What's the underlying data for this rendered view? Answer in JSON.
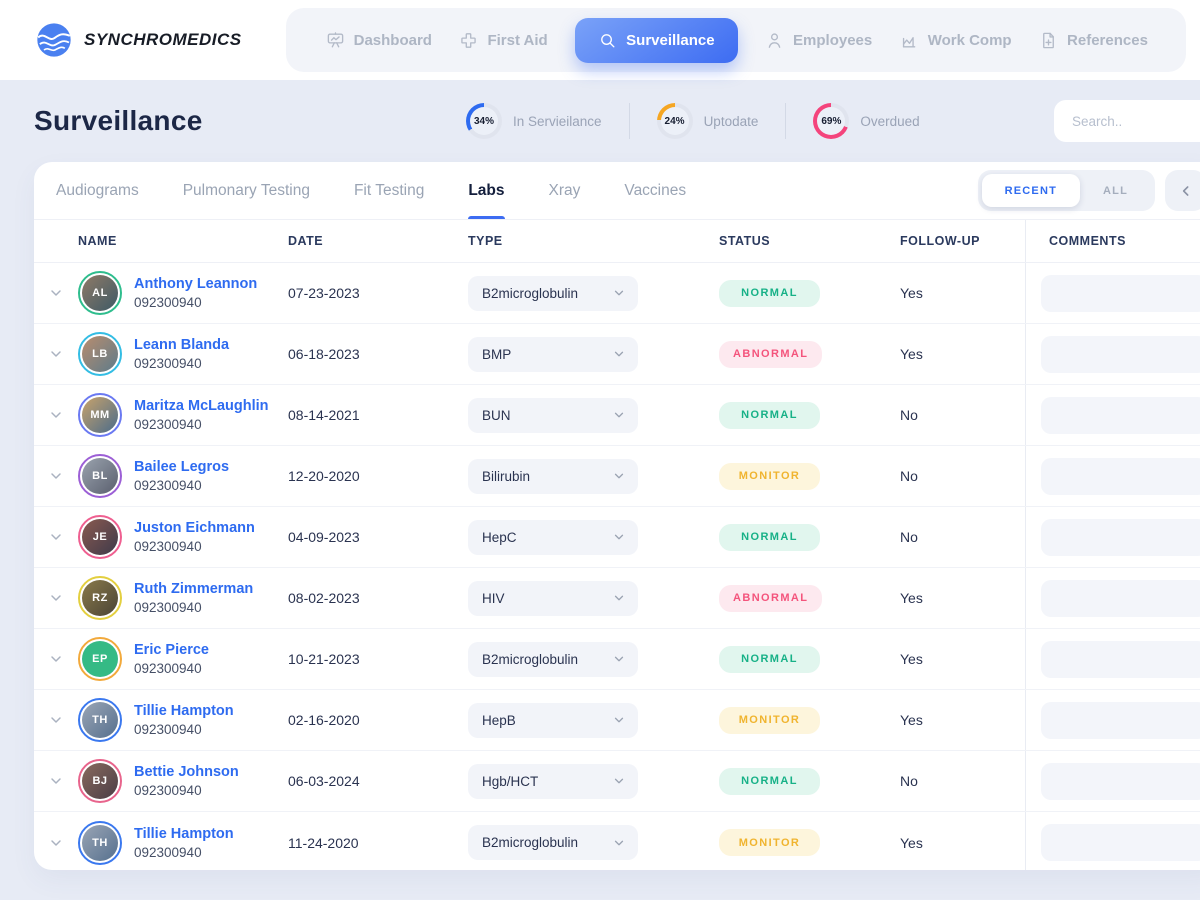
{
  "brand": {
    "name": "SYNCHROMEDICS"
  },
  "nav": {
    "items": [
      {
        "label": "Dashboard",
        "icon": "dashboard",
        "active": false
      },
      {
        "label": "First Aid",
        "icon": "first-aid",
        "active": false
      },
      {
        "label": "Surveillance",
        "icon": "search",
        "active": true
      },
      {
        "label": "Employees",
        "icon": "user",
        "active": false
      },
      {
        "label": "Work Comp",
        "icon": "chart",
        "active": false
      },
      {
        "label": "References",
        "icon": "document-plus",
        "active": false
      }
    ]
  },
  "header": {
    "title": "Surveillance",
    "stats": [
      {
        "value": "34%",
        "pct": 34,
        "label": "In Servieilance",
        "color": "#2e6bf0"
      },
      {
        "value": "24%",
        "pct": 24,
        "label": "Uptodate",
        "color": "#f5a623"
      },
      {
        "value": "69%",
        "pct": 69,
        "label": "Overdued",
        "color": "#f4447c"
      }
    ],
    "search_placeholder": "Search.."
  },
  "tabs": {
    "items": [
      {
        "label": "Audiograms",
        "active": false
      },
      {
        "label": "Pulmonary Testing",
        "active": false
      },
      {
        "label": "Fit Testing",
        "active": false
      },
      {
        "label": "Labs",
        "active": true
      },
      {
        "label": "Xray",
        "active": false
      },
      {
        "label": "Vaccines",
        "active": false
      }
    ],
    "filter_options": [
      {
        "label": "RECENT",
        "selected": true
      },
      {
        "label": "ALL",
        "selected": false
      }
    ]
  },
  "table": {
    "columns": [
      "NAME",
      "DATE",
      "TYPE",
      "STATUS",
      "FOLLOW-UP",
      "COMMENTS"
    ],
    "status_styles": {
      "normal": {
        "text": "#17b187",
        "bg": "#e1f6ee"
      },
      "abnormal": {
        "text": "#f4547c",
        "bg": "#fde9ef"
      },
      "monitor": {
        "text": "#f0b42f",
        "bg": "#fdf5dc"
      }
    },
    "rows": [
      {
        "name": "Anthony Leannon",
        "employee_id": "092300940",
        "initials": "AL",
        "ring_color": "#2ebd8d",
        "avatar_colors": [
          "#8f7a66",
          "#3e5a66"
        ],
        "date": "07-23-2023",
        "type": "B2microglobulin",
        "status": "NORMAL",
        "status_key": "normal",
        "follow_up": "Yes"
      },
      {
        "name": "Leann Blanda",
        "employee_id": "092300940",
        "initials": "LB",
        "ring_color": "#33bde4",
        "avatar_colors": [
          "#b98d6e",
          "#5d7b8a"
        ],
        "date": "06-18-2023",
        "type": "BMP",
        "status": "ABNORMAL",
        "status_key": "abnormal",
        "follow_up": "Yes"
      },
      {
        "name": "Maritza McLaughlin",
        "employee_id": "092300940",
        "initials": "MM",
        "ring_color": "#6a79f2",
        "avatar_colors": [
          "#c9a36b",
          "#4a6b8a"
        ],
        "date": "08-14-2021",
        "type": "BUN",
        "status": "NORMAL",
        "status_key": "normal",
        "follow_up": "No"
      },
      {
        "name": "Bailee Legros",
        "employee_id": "092300940",
        "initials": "BL",
        "ring_color": "#9c5fd6",
        "avatar_colors": [
          "#9aa3ae",
          "#5a5f6e"
        ],
        "date": "12-20-2020",
        "type": "Bilirubin",
        "status": "MONITOR",
        "status_key": "monitor",
        "follow_up": "No"
      },
      {
        "name": "Juston Eichmann",
        "employee_id": "092300940",
        "initials": "JE",
        "ring_color": "#ef5f90",
        "avatar_colors": [
          "#8a5a50",
          "#3e3a4a"
        ],
        "date": "04-09-2023",
        "type": "HepC",
        "status": "NORMAL",
        "status_key": "normal",
        "follow_up": "No"
      },
      {
        "name": "Ruth Zimmerman",
        "employee_id": "092300940",
        "initials": "RZ",
        "ring_color": "#e3cf3f",
        "avatar_colors": [
          "#8a7a4a",
          "#4a4436"
        ],
        "date": "08-02-2023",
        "type": "HIV",
        "status": "ABNORMAL",
        "status_key": "abnormal",
        "follow_up": "Yes"
      },
      {
        "name": "Eric Pierce",
        "employee_id": "092300940",
        "initials": "EP",
        "ring_color": "#f2a93b",
        "avatar_colors": [
          "#35ba85",
          "#35ba85"
        ],
        "date": "10-21-2023",
        "type": "B2microglobulin",
        "status": "NORMAL",
        "status_key": "normal",
        "follow_up": "Yes"
      },
      {
        "name": "Tillie Hampton",
        "employee_id": "092300940",
        "initials": "TH",
        "ring_color": "#3a78ef",
        "avatar_colors": [
          "#9aa5b5",
          "#56708e"
        ],
        "date": "02-16-2020",
        "type": "HepB",
        "status": "MONITOR",
        "status_key": "monitor",
        "follow_up": "Yes"
      },
      {
        "name": "Bettie Johnson",
        "employee_id": "092300940",
        "initials": "BJ",
        "ring_color": "#e8648c",
        "avatar_colors": [
          "#8a6a5e",
          "#4a3e46"
        ],
        "date": "06-03-2024",
        "type": "Hgb/HCT",
        "status": "NORMAL",
        "status_key": "normal",
        "follow_up": "No"
      },
      {
        "name": "Tillie Hampton",
        "employee_id": "092300940",
        "initials": "TH",
        "ring_color": "#3a78ef",
        "avatar_colors": [
          "#9aa5b5",
          "#56708e"
        ],
        "date": "11-24-2020",
        "type": "B2microglobulin",
        "status": "MONITOR",
        "status_key": "monitor",
        "follow_up": "Yes"
      }
    ]
  }
}
